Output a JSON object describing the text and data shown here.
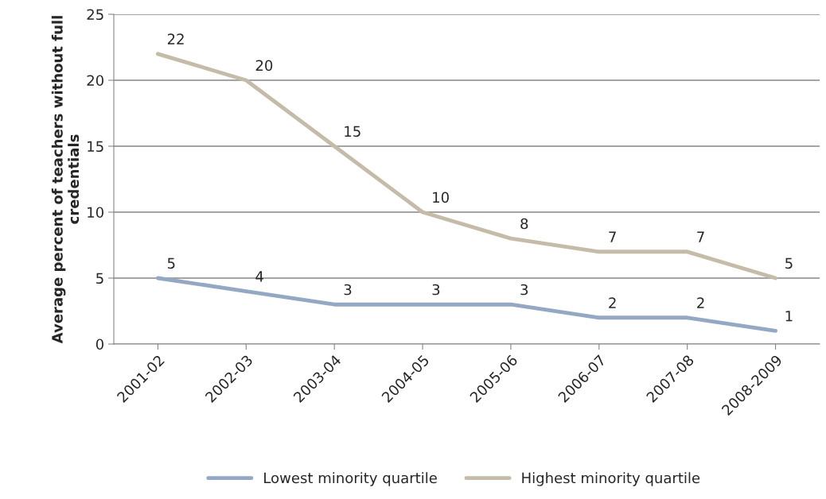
{
  "chart_data": {
    "type": "line",
    "ylabel": "Average percent of teachers without full\ncredentials",
    "categories": [
      "2001-02",
      "2002-03",
      "2003-04",
      "2004-05",
      "2005-06",
      "2006-07",
      "2007-08",
      "2008-2009"
    ],
    "series": [
      {
        "name": "Lowest minority quartile",
        "color": "#94a8c4",
        "values": [
          5,
          4,
          3,
          3,
          3,
          2,
          2,
          1
        ]
      },
      {
        "name": "Highest minority quartile",
        "color": "#c4bca8",
        "values": [
          22,
          20,
          15,
          10,
          8,
          7,
          7,
          5
        ]
      }
    ],
    "ylim": [
      0,
      25
    ],
    "yticks": [
      0,
      5,
      10,
      15,
      20,
      25
    ],
    "grid": "y",
    "legend": "bottom",
    "data_labels": true,
    "marker": "none",
    "line_style": "solid"
  }
}
